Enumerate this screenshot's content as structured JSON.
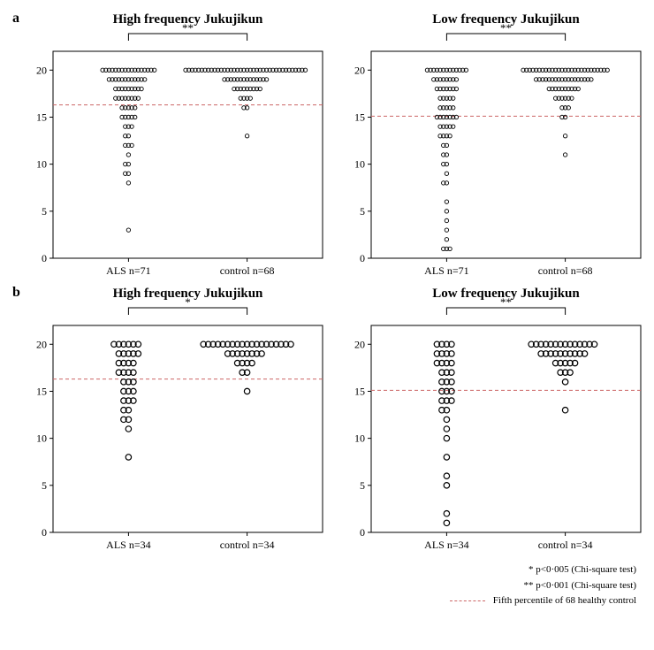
{
  "layout": {
    "rows": [
      "a",
      "b"
    ]
  },
  "global": {
    "font_family": "Times New Roman",
    "background_color": "#ffffff",
    "axis_color": "#000000",
    "cutoff_line_color": "#cc6666",
    "marker_stroke": "#000000",
    "marker_fill": "none"
  },
  "panels": {
    "a_left": {
      "title": "High frequency Jukujikun",
      "title_fontsize": 15,
      "title_fontweight": "bold",
      "sig_label": "**",
      "ylim": [
        0,
        22
      ],
      "yticks": [
        0,
        5,
        10,
        15,
        20
      ],
      "marker_radius": 2.2,
      "marker_stroke_width": 0.9,
      "cutoff_y": 16.3,
      "x_positions": [
        0.28,
        0.72
      ],
      "x_labels": [
        "ALS n=71",
        "control n=68"
      ],
      "x_label_fontsize": 12,
      "jitter_step": 0.012,
      "groups": [
        {
          "x": 0.28,
          "counts": {
            "3": 1,
            "8": 1,
            "9": 2,
            "10": 2,
            "11": 1,
            "12": 3,
            "13": 2,
            "14": 3,
            "15": 5,
            "16": 5,
            "17": 8,
            "18": 9,
            "19": 12,
            "20": 17
          }
        },
        {
          "x": 0.72,
          "counts": {
            "13": 1,
            "16": 2,
            "17": 4,
            "18": 9,
            "19": 14,
            "20": 38
          }
        }
      ]
    },
    "a_right": {
      "title": "Low frequency Jukujikun",
      "title_fontsize": 15,
      "title_fontweight": "bold",
      "sig_label": "**",
      "ylim": [
        0,
        22
      ],
      "yticks": [
        0,
        5,
        10,
        15,
        20
      ],
      "marker_radius": 2.2,
      "marker_stroke_width": 0.9,
      "cutoff_y": 15.1,
      "x_positions": [
        0.28,
        0.72
      ],
      "x_labels": [
        "ALS n=71",
        "control n=68"
      ],
      "x_label_fontsize": 12,
      "jitter_step": 0.012,
      "groups": [
        {
          "x": 0.28,
          "counts": {
            "1": 3,
            "2": 1,
            "3": 1,
            "4": 1,
            "5": 1,
            "6": 1,
            "8": 2,
            "9": 1,
            "10": 2,
            "11": 2,
            "12": 2,
            "13": 4,
            "14": 5,
            "15": 7,
            "16": 5,
            "17": 5,
            "18": 7,
            "19": 8,
            "20": 13
          }
        },
        {
          "x": 0.72,
          "counts": {
            "11": 1,
            "13": 1,
            "15": 2,
            "16": 3,
            "17": 6,
            "18": 10,
            "19": 18,
            "20": 27
          }
        }
      ]
    },
    "b_left": {
      "title": "High frequency Jukujikun",
      "title_fontsize": 15,
      "title_fontweight": "bold",
      "sig_label": "*",
      "ylim": [
        0,
        22
      ],
      "yticks": [
        0,
        5,
        10,
        15,
        20
      ],
      "marker_radius": 3.2,
      "marker_stroke_width": 1.2,
      "cutoff_y": 16.3,
      "x_positions": [
        0.28,
        0.72
      ],
      "x_labels": [
        "ALS n=34",
        "control n=34"
      ],
      "x_label_fontsize": 12,
      "jitter_step": 0.018,
      "groups": [
        {
          "x": 0.28,
          "counts": {
            "8": 1,
            "11": 1,
            "12": 2,
            "13": 2,
            "14": 3,
            "15": 3,
            "16": 3,
            "17": 4,
            "18": 4,
            "19": 5,
            "20": 6
          }
        },
        {
          "x": 0.72,
          "counts": {
            "15": 1,
            "17": 2,
            "18": 4,
            "19": 8,
            "20": 19
          }
        }
      ]
    },
    "b_right": {
      "title": "Low frequency Jukujikun",
      "title_fontsize": 15,
      "title_fontweight": "bold",
      "sig_label": "**",
      "ylim": [
        0,
        22
      ],
      "yticks": [
        0,
        5,
        10,
        15,
        20
      ],
      "marker_radius": 3.2,
      "marker_stroke_width": 1.2,
      "cutoff_y": 15.1,
      "x_positions": [
        0.28,
        0.72
      ],
      "x_labels": [
        "ALS n=34",
        "control n=34"
      ],
      "x_label_fontsize": 12,
      "jitter_step": 0.018,
      "groups": [
        {
          "x": 0.28,
          "counts": {
            "1": 1,
            "2": 1,
            "5": 1,
            "6": 1,
            "8": 1,
            "10": 1,
            "11": 1,
            "12": 1,
            "13": 2,
            "14": 3,
            "15": 3,
            "16": 3,
            "17": 3,
            "18": 4,
            "19": 4,
            "20": 4
          }
        },
        {
          "x": 0.72,
          "counts": {
            "13": 1,
            "16": 1,
            "17": 3,
            "18": 5,
            "19": 10,
            "20": 14
          }
        }
      ]
    }
  },
  "footnotes": {
    "line1": "* p<0·005 (Chi-square test)",
    "line2": "** p<0·001 (Chi-square test)",
    "line3": "Fifth percentile of 68 healthy control"
  }
}
